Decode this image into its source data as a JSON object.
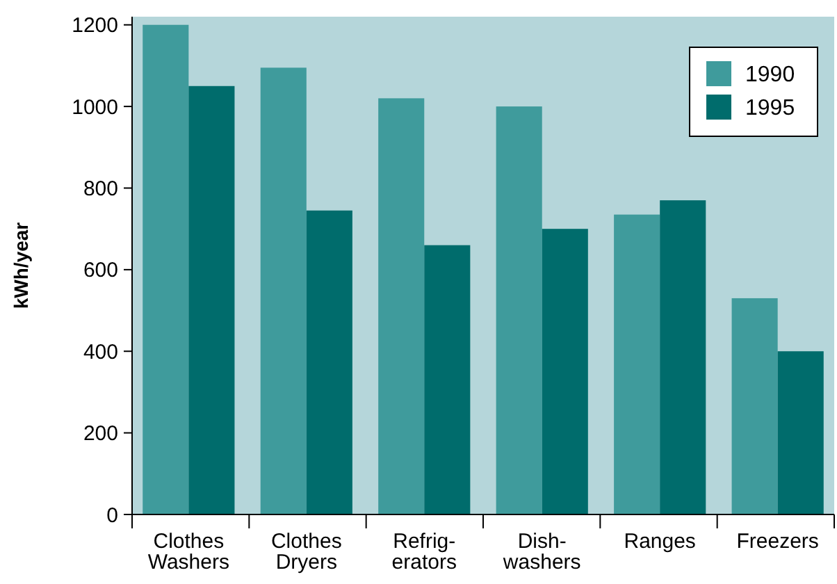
{
  "chart_data": {
    "type": "bar",
    "ylabel": "kWh/year",
    "categories": [
      "Clothes\nWashers",
      "Clothes\nDryers",
      "Refrig-\nerators",
      "Dish-\nwashers",
      "Ranges",
      "Freezers"
    ],
    "series": [
      {
        "name": "1990",
        "color": "#3f9b9c",
        "values": [
          1200,
          1095,
          1020,
          1000,
          735,
          530
        ]
      },
      {
        "name": "1995",
        "color": "#006c6c",
        "values": [
          1050,
          745,
          660,
          700,
          770,
          400
        ]
      }
    ],
    "ylim": [
      0,
      1220
    ],
    "yticks": [
      0,
      200,
      400,
      600,
      800,
      1000,
      1200
    ],
    "grid": false,
    "legend": "top right"
  }
}
